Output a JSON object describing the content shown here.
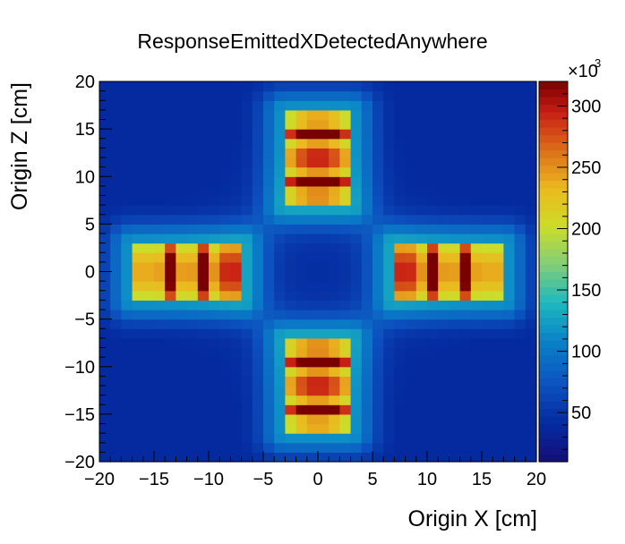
{
  "chart_data": {
    "type": "heatmap",
    "title": "ResponseEmittedXDetectedAnywhere",
    "xlabel": "Origin X [cm]",
    "ylabel": "Origin Z [cm]",
    "xlim": [
      -20,
      20
    ],
    "ylim": [
      -20,
      20
    ],
    "bins": 40,
    "x_ticks": [
      -20,
      -15,
      -10,
      -5,
      0,
      5,
      10,
      15,
      20
    ],
    "y_ticks": [
      -20,
      -15,
      -10,
      -5,
      0,
      5,
      10,
      15,
      20
    ],
    "x_tick_labels": [
      "−20",
      "−15",
      "−10",
      "−5",
      "0",
      "5",
      "10",
      "15",
      "20"
    ],
    "y_tick_labels": [
      "−20",
      "−15",
      "−10",
      "−5",
      "0",
      "5",
      "10",
      "15",
      "20"
    ],
    "z_multiplier": "×10",
    "z_multiplier_exp": "3",
    "z_range": [
      10,
      320
    ],
    "z_ticks": [
      50,
      100,
      150,
      200,
      250,
      300
    ],
    "background_value": 40,
    "hotspots": [
      {
        "x_range": [
          -3,
          3
        ],
        "z_range": [
          7,
          17
        ],
        "peak": 315,
        "stripe_axis": "z",
        "stripe_centers": [
          14.5,
          12.0,
          9.5
        ]
      },
      {
        "x_range": [
          -3,
          3
        ],
        "z_range": [
          -17,
          -7
        ],
        "peak": 315,
        "stripe_axis": "z",
        "stripe_centers": [
          -9.5,
          -12.0,
          -14.5
        ]
      },
      {
        "x_range": [
          -17,
          -7
        ],
        "z_range": [
          -3,
          3
        ],
        "peak": 300,
        "stripe_axis": "x",
        "stripe_centers": [
          -13.5,
          -10.5,
          -8.0
        ]
      },
      {
        "x_range": [
          7,
          17
        ],
        "z_range": [
          -3,
          3
        ],
        "peak": 300,
        "stripe_axis": "x",
        "stripe_centers": [
          8.0,
          10.5,
          13.5
        ]
      }
    ]
  }
}
